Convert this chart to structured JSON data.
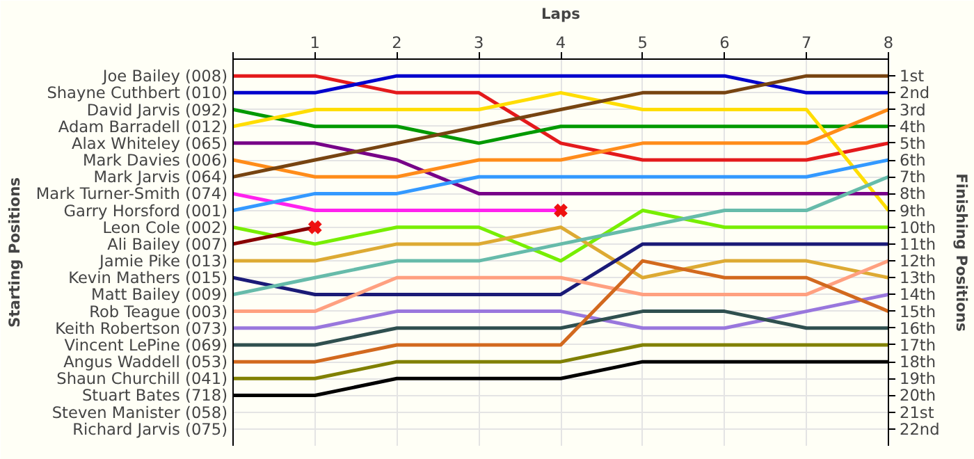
{
  "chart_data": {
    "type": "line",
    "xlabel": "Laps",
    "ylabel": "Finishing Positions",
    "annotations": [
      "Starting Positions",
      "Steven Manister (058)",
      "Richard Jarvis (075)"
    ],
    "x": [
      0,
      1,
      2,
      3,
      4,
      5,
      6,
      7,
      8
    ],
    "xlim": [
      0,
      8
    ],
    "xticks": [
      {
        "value": 0,
        "label": null
      },
      1,
      2,
      3,
      4,
      5,
      6,
      7,
      8
    ],
    "ylim": [
      23,
      0
    ],
    "yticks": [
      {
        "value": 1,
        "label": "1st"
      },
      {
        "value": 2,
        "label": "2nd"
      },
      {
        "value": 3,
        "label": "3rd"
      },
      {
        "value": 4,
        "label": "4th"
      },
      {
        "value": 5,
        "label": "5th"
      },
      {
        "value": 6,
        "label": "6th"
      },
      {
        "value": 7,
        "label": "7th"
      },
      {
        "value": 8,
        "label": "8th"
      },
      {
        "value": 9,
        "label": "9th"
      },
      {
        "value": 10,
        "label": "10th"
      },
      {
        "value": 11,
        "label": "11th"
      },
      {
        "value": 12,
        "label": "12th"
      },
      {
        "value": 13,
        "label": "13th"
      },
      {
        "value": 14,
        "label": "14th"
      },
      {
        "value": 15,
        "label": "15th"
      },
      {
        "value": 16,
        "label": "16th"
      },
      {
        "value": 17,
        "label": "17th"
      },
      {
        "value": 18,
        "label": "18th"
      },
      {
        "value": 19,
        "label": "19th"
      },
      {
        "value": 20,
        "label": "20th"
      },
      {
        "value": 21,
        "label": "21st"
      },
      {
        "value": 22,
        "label": "22nd"
      }
    ],
    "grid": true,
    "legend": false,
    "marker": "none",
    "line_style": "solid",
    "series": [
      {
        "name": "Joe Bailey (008)",
        "color": "#e41a1c",
        "values": [
          1,
          1,
          2,
          2,
          5,
          6,
          6,
          6,
          5
        ]
      },
      {
        "name": "Shayne Cuthbert (010)",
        "color": "#0000cc",
        "values": [
          2,
          2,
          1,
          1,
          1,
          1,
          1,
          2,
          2
        ]
      },
      {
        "name": "David Jarvis (092)",
        "color": "#009900",
        "values": [
          3,
          4,
          4,
          5,
          4,
          4,
          4,
          4,
          4
        ]
      },
      {
        "name": "Adam Barradell (012)",
        "color": "#ffdd00",
        "values": [
          4,
          3,
          3,
          3,
          2,
          3,
          3,
          3,
          9
        ]
      },
      {
        "name": "Alax Whiteley (065)",
        "color": "#770088",
        "values": [
          5,
          5,
          6,
          8,
          8,
          8,
          8,
          8,
          8
        ]
      },
      {
        "name": "Mark Davies (006)",
        "color": "#ff8c1a",
        "values": [
          6,
          7,
          7,
          6,
          6,
          5,
          5,
          5,
          3
        ]
      },
      {
        "name": "Mark Jarvis (064)",
        "color": "#774411",
        "values": [
          7,
          6,
          5,
          4,
          3,
          2,
          2,
          1,
          1
        ]
      },
      {
        "name": "Mark Turner-Smith (074)",
        "color": "#ff22ee",
        "values": [
          8,
          9,
          9,
          9,
          9,
          null,
          null,
          null,
          null
        ]
      },
      {
        "name": "Garry Horsford (001)",
        "color": "#3399ff",
        "values": [
          9,
          8,
          8,
          7,
          7,
          7,
          7,
          7,
          6
        ]
      },
      {
        "name": "Leon Cole (002)",
        "color": "#77ee00",
        "values": [
          10,
          11,
          10,
          10,
          12,
          9,
          10,
          10,
          10
        ]
      },
      {
        "name": "Ali Bailey (007)",
        "color": "#880000",
        "values": [
          11,
          10,
          null,
          null,
          null,
          null,
          null,
          null,
          null
        ]
      },
      {
        "name": "Jamie Pike (013)",
        "color": "#ddaa33",
        "values": [
          12,
          12,
          11,
          11,
          10,
          13,
          12,
          12,
          13
        ]
      },
      {
        "name": "Kevin Mathers (015)",
        "color": "#1a1a77",
        "values": [
          13,
          14,
          14,
          14,
          14,
          11,
          11,
          11,
          11
        ]
      },
      {
        "name": "Matt Bailey (009)",
        "color": "#66bbaa",
        "values": [
          14,
          13,
          12,
          12,
          11,
          10,
          9,
          9,
          7
        ]
      },
      {
        "name": "Rob Teague (003)",
        "color": "#ffa080",
        "values": [
          15,
          15,
          13,
          13,
          13,
          14,
          14,
          14,
          12
        ]
      },
      {
        "name": "Keith Robertson (073)",
        "color": "#9977dd",
        "values": [
          16,
          16,
          15,
          15,
          15,
          16,
          16,
          15,
          14
        ]
      },
      {
        "name": "Vincent LePine (069)",
        "color": "#2f4f4f",
        "values": [
          17,
          17,
          16,
          16,
          16,
          15,
          15,
          16,
          16
        ]
      },
      {
        "name": "Angus Waddell (053)",
        "color": "#d2691e",
        "values": [
          18,
          18,
          17,
          17,
          17,
          12,
          13,
          13,
          15
        ]
      },
      {
        "name": "Shaun Churchill (041)",
        "color": "#808000",
        "values": [
          19,
          19,
          18,
          18,
          18,
          17,
          17,
          17,
          17
        ]
      },
      {
        "name": "Stuart Bates (718)",
        "color": "#000000",
        "values": [
          20,
          20,
          19,
          19,
          19,
          18,
          18,
          18,
          18
        ]
      },
      {
        "type": "scatter",
        "marker": "cross",
        "color": "#ee1111",
        "x": [
          1,
          4
        ],
        "values": [
          10,
          9
        ]
      }
    ]
  }
}
